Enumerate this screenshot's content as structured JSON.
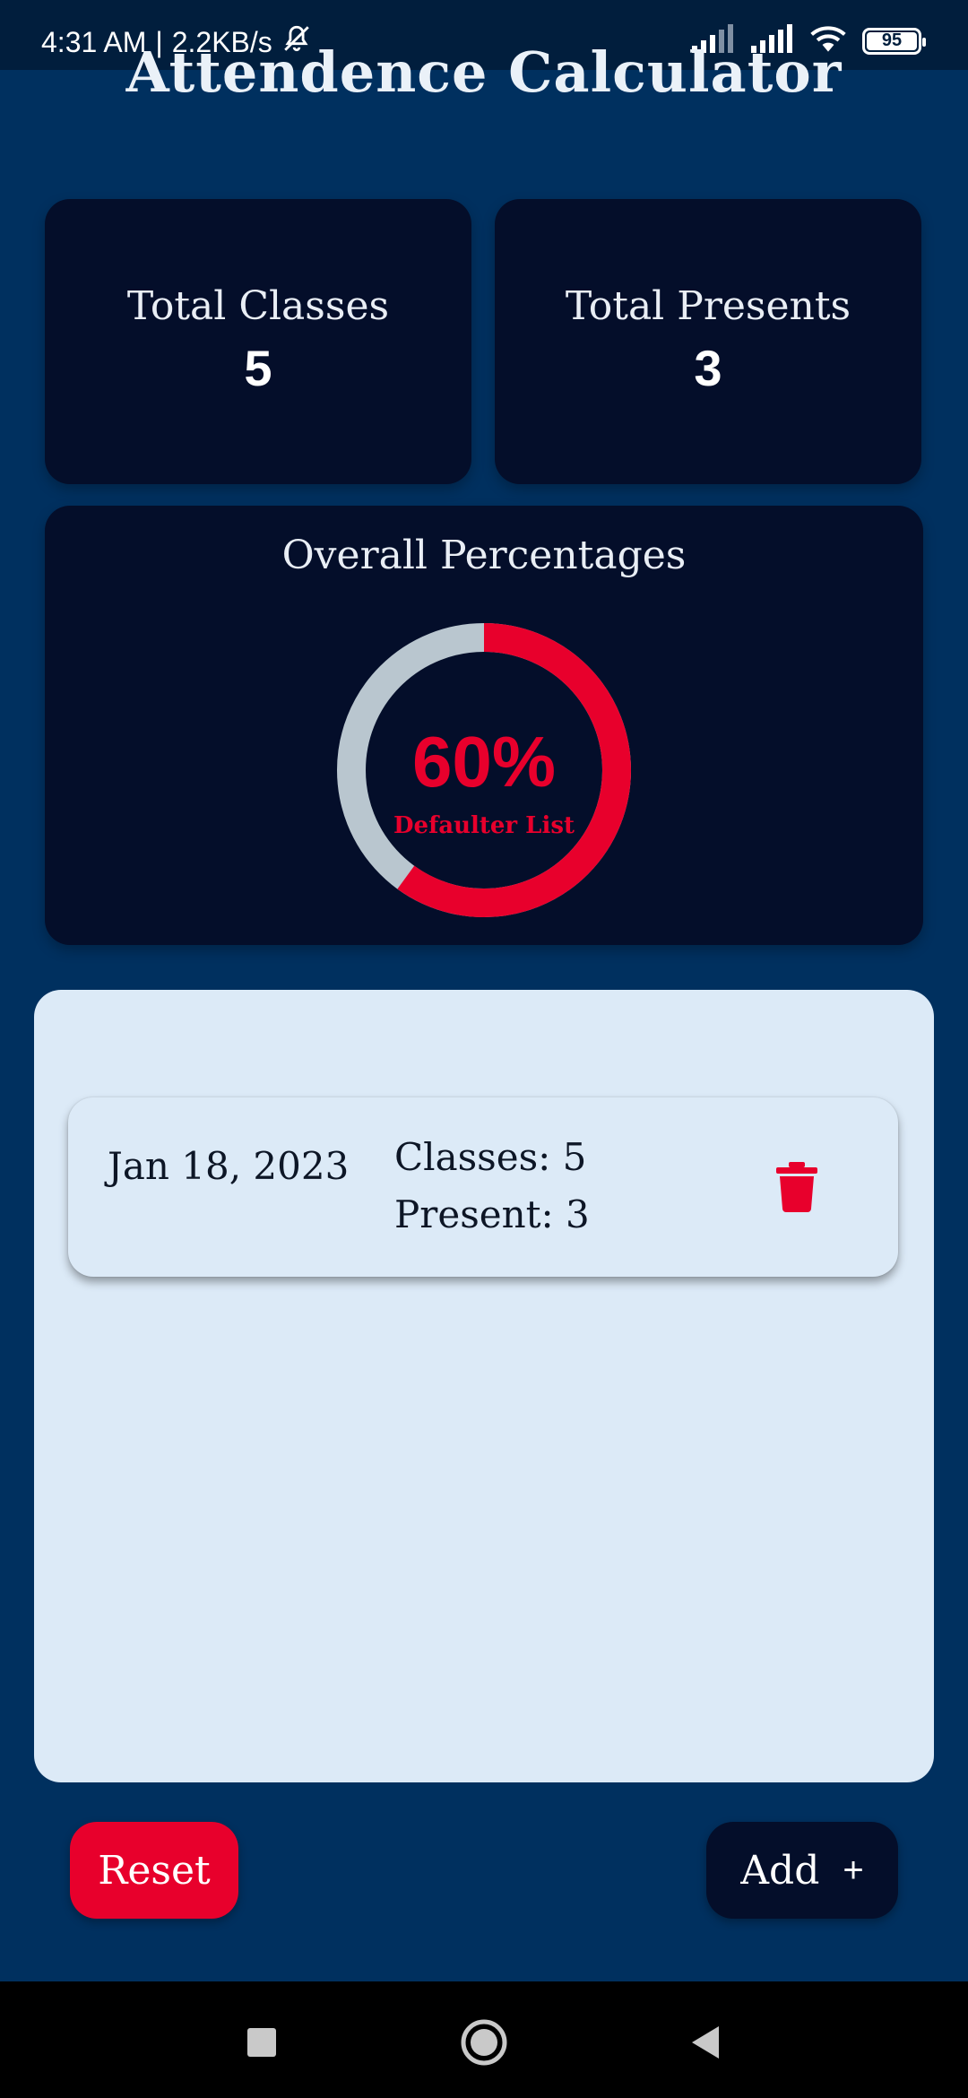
{
  "status_bar": {
    "time": "4:31 AM",
    "separator": "|",
    "speed": "2.2KB/s",
    "battery": "95"
  },
  "app": {
    "title": "Attendence Calculator"
  },
  "stats": {
    "total_classes_label": "Total Classes",
    "total_classes_value": "5",
    "total_presents_label": "Total Presents",
    "total_presents_value": "3"
  },
  "overall": {
    "title": "Overall Percentages",
    "percent_text": "60%",
    "percent_value": 60,
    "status": "Defaulter List",
    "progress_color": "#e8002c",
    "track_color": "#b9c6cf"
  },
  "entries": [
    {
      "date": "Jan 18, 2023",
      "classes": "Classes: 5",
      "present": "Present: 3",
      "action_icon": "trash-icon"
    }
  ],
  "actions": {
    "reset_label": "Reset",
    "add_label": "Add",
    "add_symbol": "+"
  },
  "colors": {
    "background": "#00305f",
    "card": "#040e2a",
    "accent_red": "#e8002c",
    "panel": "#dceaf7"
  }
}
